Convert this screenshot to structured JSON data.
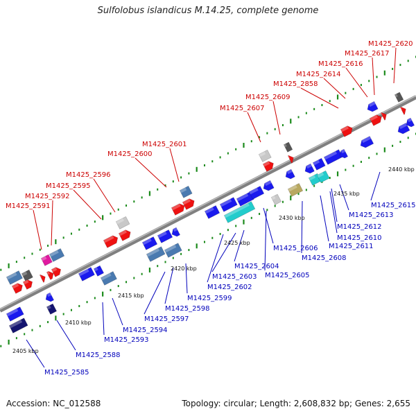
{
  "title": "Sulfolobus islandicus M.14.25, complete genome",
  "footer": {
    "accession": "Accession: NC_012588",
    "summary": "Topology: circular; Length: 2,608,832 bp; Genes: 2,655"
  },
  "colors": {
    "red": "#ee1111",
    "blue": "#1a1aee",
    "steel": "#4a7ab0",
    "gray": "#c8c8c8",
    "dark": "#555555",
    "magenta": "#e01aa0",
    "cyan": "#22cccc",
    "olive": "#b8a860",
    "navy": "#141470",
    "tick": "#1a8a1a",
    "backbone": "#808080",
    "label_top": "#cc0000",
    "label_bottom": "#0000bb"
  },
  "scale_labels": [
    "2405 kbp",
    "2410 kbp",
    "2415 kbp",
    "2420 kbp",
    "2425 kbp",
    "2430 kbp",
    "2435 kbp",
    "2440 kbp"
  ],
  "top_labels": [
    "M1425_2591",
    "M1425_2592",
    "M1425_2595",
    "M1425_2596",
    "M1425_2600",
    "M1425_2601",
    "M1425_2607",
    "M1425_2609",
    "M1425_2858",
    "M1425_2614",
    "M1425_2616",
    "M1425_2617",
    "M1425_2620"
  ],
  "bottom_labels": [
    "M1425_2585",
    "M1425_2588",
    "M1425_2593",
    "M1425_2594",
    "M1425_2597",
    "M1425_2598",
    "M1425_2599",
    "M1425_2602",
    "M1425_2603",
    "M1425_2604",
    "M1425_2605",
    "M1425_2606",
    "M1425_2608",
    "M1425_2611",
    "M1425_2610",
    "M1425_2612",
    "M1425_2613",
    "M1425_2615"
  ]
}
